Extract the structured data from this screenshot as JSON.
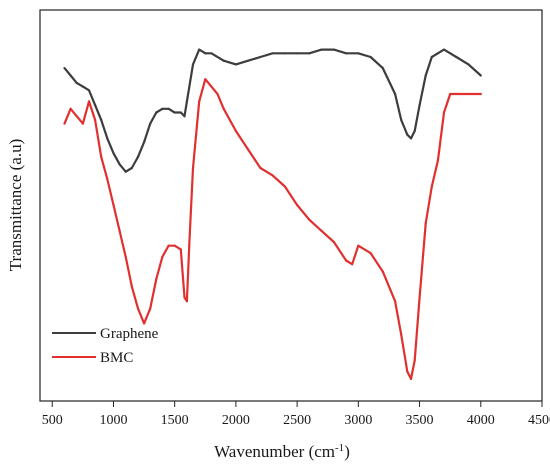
{
  "chart_data": {
    "type": "line",
    "xlabel": "Wavenumber (cm",
    "xlabel_sup": "-1",
    "xlabel_suffix": ")",
    "ylabel": "Transmittance (a.u)",
    "xlim": [
      400,
      4500
    ],
    "ylim": [
      0,
      100
    ],
    "x_ticks": [
      "500",
      "1000",
      "1500",
      "2000",
      "2500",
      "3000",
      "3500",
      "4000",
      "4500"
    ],
    "y_tick_labels": false,
    "grid": false,
    "legend_position": "bottom-left",
    "series": [
      {
        "name": "Graphene",
        "color": "#3d3d3d",
        "points": [
          [
            600,
            87
          ],
          [
            650,
            85
          ],
          [
            700,
            83
          ],
          [
            750,
            82
          ],
          [
            800,
            81
          ],
          [
            850,
            77
          ],
          [
            900,
            73
          ],
          [
            950,
            68
          ],
          [
            1000,
            64
          ],
          [
            1050,
            61
          ],
          [
            1100,
            59
          ],
          [
            1150,
            60
          ],
          [
            1200,
            63
          ],
          [
            1250,
            67
          ],
          [
            1300,
            72
          ],
          [
            1350,
            75
          ],
          [
            1400,
            76
          ],
          [
            1450,
            76
          ],
          [
            1500,
            75
          ],
          [
            1550,
            75
          ],
          [
            1580,
            74
          ],
          [
            1600,
            78
          ],
          [
            1650,
            88
          ],
          [
            1700,
            92
          ],
          [
            1750,
            91
          ],
          [
            1800,
            91
          ],
          [
            1900,
            89
          ],
          [
            2000,
            88
          ],
          [
            2100,
            89
          ],
          [
            2200,
            90
          ],
          [
            2300,
            91
          ],
          [
            2400,
            91
          ],
          [
            2500,
            91
          ],
          [
            2600,
            91
          ],
          [
            2700,
            92
          ],
          [
            2800,
            92
          ],
          [
            2900,
            91
          ],
          [
            3000,
            91
          ],
          [
            3100,
            90
          ],
          [
            3200,
            87
          ],
          [
            3300,
            80
          ],
          [
            3350,
            73
          ],
          [
            3400,
            69
          ],
          [
            3430,
            68
          ],
          [
            3460,
            70
          ],
          [
            3500,
            77
          ],
          [
            3550,
            85
          ],
          [
            3600,
            90
          ],
          [
            3650,
            91
          ],
          [
            3700,
            92
          ],
          [
            3750,
            91
          ],
          [
            3800,
            90
          ],
          [
            3900,
            88
          ],
          [
            4000,
            85
          ]
        ]
      },
      {
        "name": "BMC",
        "color": "#e03030",
        "points": [
          [
            600,
            72
          ],
          [
            650,
            76
          ],
          [
            700,
            74
          ],
          [
            750,
            72
          ],
          [
            800,
            78
          ],
          [
            850,
            73
          ],
          [
            900,
            63
          ],
          [
            950,
            57
          ],
          [
            1000,
            50
          ],
          [
            1050,
            43
          ],
          [
            1100,
            36
          ],
          [
            1150,
            28
          ],
          [
            1200,
            22
          ],
          [
            1250,
            18
          ],
          [
            1300,
            22
          ],
          [
            1350,
            30
          ],
          [
            1400,
            36
          ],
          [
            1450,
            39
          ],
          [
            1500,
            39
          ],
          [
            1550,
            38
          ],
          [
            1580,
            25
          ],
          [
            1600,
            24
          ],
          [
            1620,
            40
          ],
          [
            1650,
            60
          ],
          [
            1700,
            78
          ],
          [
            1750,
            84
          ],
          [
            1800,
            82
          ],
          [
            1850,
            80
          ],
          [
            1900,
            76
          ],
          [
            2000,
            70
          ],
          [
            2100,
            65
          ],
          [
            2200,
            60
          ],
          [
            2300,
            58
          ],
          [
            2400,
            55
          ],
          [
            2500,
            50
          ],
          [
            2600,
            46
          ],
          [
            2700,
            43
          ],
          [
            2800,
            40
          ],
          [
            2900,
            35
          ],
          [
            2950,
            34
          ],
          [
            3000,
            39
          ],
          [
            3100,
            37
          ],
          [
            3200,
            32
          ],
          [
            3300,
            24
          ],
          [
            3350,
            15
          ],
          [
            3400,
            5
          ],
          [
            3430,
            3
          ],
          [
            3460,
            8
          ],
          [
            3500,
            25
          ],
          [
            3550,
            45
          ],
          [
            3600,
            55
          ],
          [
            3650,
            62
          ],
          [
            3700,
            75
          ],
          [
            3750,
            80
          ],
          [
            3800,
            80
          ],
          [
            3900,
            80
          ],
          [
            4000,
            80
          ]
        ]
      }
    ]
  }
}
